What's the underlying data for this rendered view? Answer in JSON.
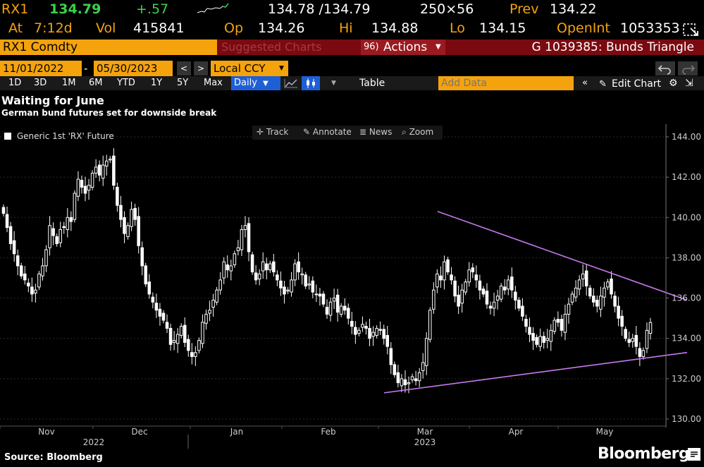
{
  "header": {
    "ticker": "RX1",
    "last": "134.79",
    "change": "+.57",
    "bid_ask": "134.78 /134.79",
    "size": "250×56",
    "prev_label": "Prev",
    "prev": "134.22",
    "at_label": "At",
    "at_time": "7:12d",
    "vol_label": "Vol",
    "vol": "415841",
    "op_label": "Op",
    "op": "134.26",
    "hi_label": "Hi",
    "hi": "134.88",
    "lo_label": "Lo",
    "lo": "134.15",
    "oi_label": "OpenInt",
    "oi": "1053353"
  },
  "toolbar": {
    "security": "RX1 Comdty",
    "suggested": "Suggested Charts",
    "actions_num": "96)",
    "actions": "Actions",
    "chart_name": "G 1039385: Bunds Triangle"
  },
  "range": {
    "start": "11/01/2022",
    "end": "05/30/2023",
    "currency": "Local CCY"
  },
  "timeframes": [
    "1D",
    "3D",
    "1M",
    "6M",
    "YTD",
    "1Y",
    "5Y",
    "Max"
  ],
  "period": "Daily",
  "table_label": "Table",
  "add_data": "Add Data",
  "edit_chart": "Edit Chart",
  "title": "Waiting for June",
  "subtitle": "German bund futures set for downside break",
  "chart_tools": [
    "Track",
    "Annotate",
    "News",
    "Zoom"
  ],
  "legend": "Generic 1st 'RX' Future",
  "source": "Source: Bloomberg",
  "brand": "Bloomberg",
  "colors": {
    "amber": "#f4a30d",
    "trendline": "#c879f0",
    "up": "#ffffff",
    "down": "#ffffff"
  },
  "chart_data": {
    "type": "candlestick",
    "legend_placement": "top-left",
    "y_axis_side": "right",
    "ylim": [
      130,
      144.5
    ],
    "yticks": [
      "130.00",
      "132.00",
      "134.00",
      "136.00",
      "138.00",
      "140.00",
      "142.00",
      "144.00"
    ],
    "month_labels": [
      "Nov",
      "Dec",
      "Jan",
      "Feb",
      "Mar",
      "Apr",
      "May"
    ],
    "year_labels": [
      "2022",
      "2023"
    ],
    "closes": [
      140.2,
      139.5,
      138.7,
      138.2,
      137.6,
      137.1,
      136.9,
      136.6,
      136.2,
      136.4,
      137.2,
      137.6,
      138.4,
      139.6,
      139.1,
      138.7,
      139.4,
      139.5,
      140.0,
      139.8,
      141.2,
      141.9,
      141.5,
      141.2,
      141.6,
      142.2,
      142.5,
      142.1,
      142.6,
      142.8,
      142.9,
      141.6,
      140.6,
      139.9,
      139.2,
      139.6,
      140.4,
      139.9,
      138.6,
      137.6,
      136.7,
      136.2,
      135.8,
      135.4,
      135.1,
      134.9,
      134.5,
      133.7,
      133.9,
      134.2,
      134.6,
      133.8,
      133.4,
      133.1,
      133.3,
      133.9,
      134.8,
      135.2,
      135.4,
      135.9,
      136.4,
      136.9,
      137.8,
      137.4,
      137.6,
      138.2,
      138.5,
      139.4,
      139.6,
      138.3,
      137.3,
      136.9,
      137.2,
      137.8,
      137.4,
      137.7,
      137.3,
      136.9,
      136.5,
      136.2,
      136.4,
      136.9,
      137.7,
      137.3,
      137.2,
      136.6,
      136.7,
      136.3,
      136.2,
      136.1,
      135.7,
      135.2,
      135.8,
      136.0,
      135.3,
      135.6,
      135.4,
      135.0,
      134.6,
      134.2,
      134.4,
      134.7,
      134.5,
      134.0,
      134.3,
      134.5,
      134.4,
      134.0,
      133.6,
      132.7,
      132.2,
      131.8,
      132.0,
      131.7,
      131.8,
      132.1,
      131.9,
      132.3,
      132.8,
      134.0,
      135.4,
      136.4,
      137.2,
      136.9,
      137.8,
      137.3,
      136.9,
      136.1,
      135.6,
      136.4,
      136.8,
      137.4,
      137.3,
      136.9,
      136.4,
      136.2,
      135.7,
      135.5,
      135.8,
      136.1,
      136.6,
      136.4,
      136.9,
      136.4,
      135.9,
      135.5,
      135.1,
      134.6,
      134.2,
      133.9,
      133.7,
      134.1,
      133.8,
      134.0,
      134.4,
      134.9,
      134.8,
      134.4,
      135.2,
      135.7,
      136.2,
      136.5,
      136.9,
      137.2,
      136.6,
      136.1,
      135.8,
      135.6,
      136.1,
      136.5,
      136.8,
      136.2,
      135.6,
      135.0,
      134.6,
      134.0,
      133.8,
      134.0,
      133.6,
      133.1,
      133.4,
      134.4,
      134.79
    ]
  }
}
